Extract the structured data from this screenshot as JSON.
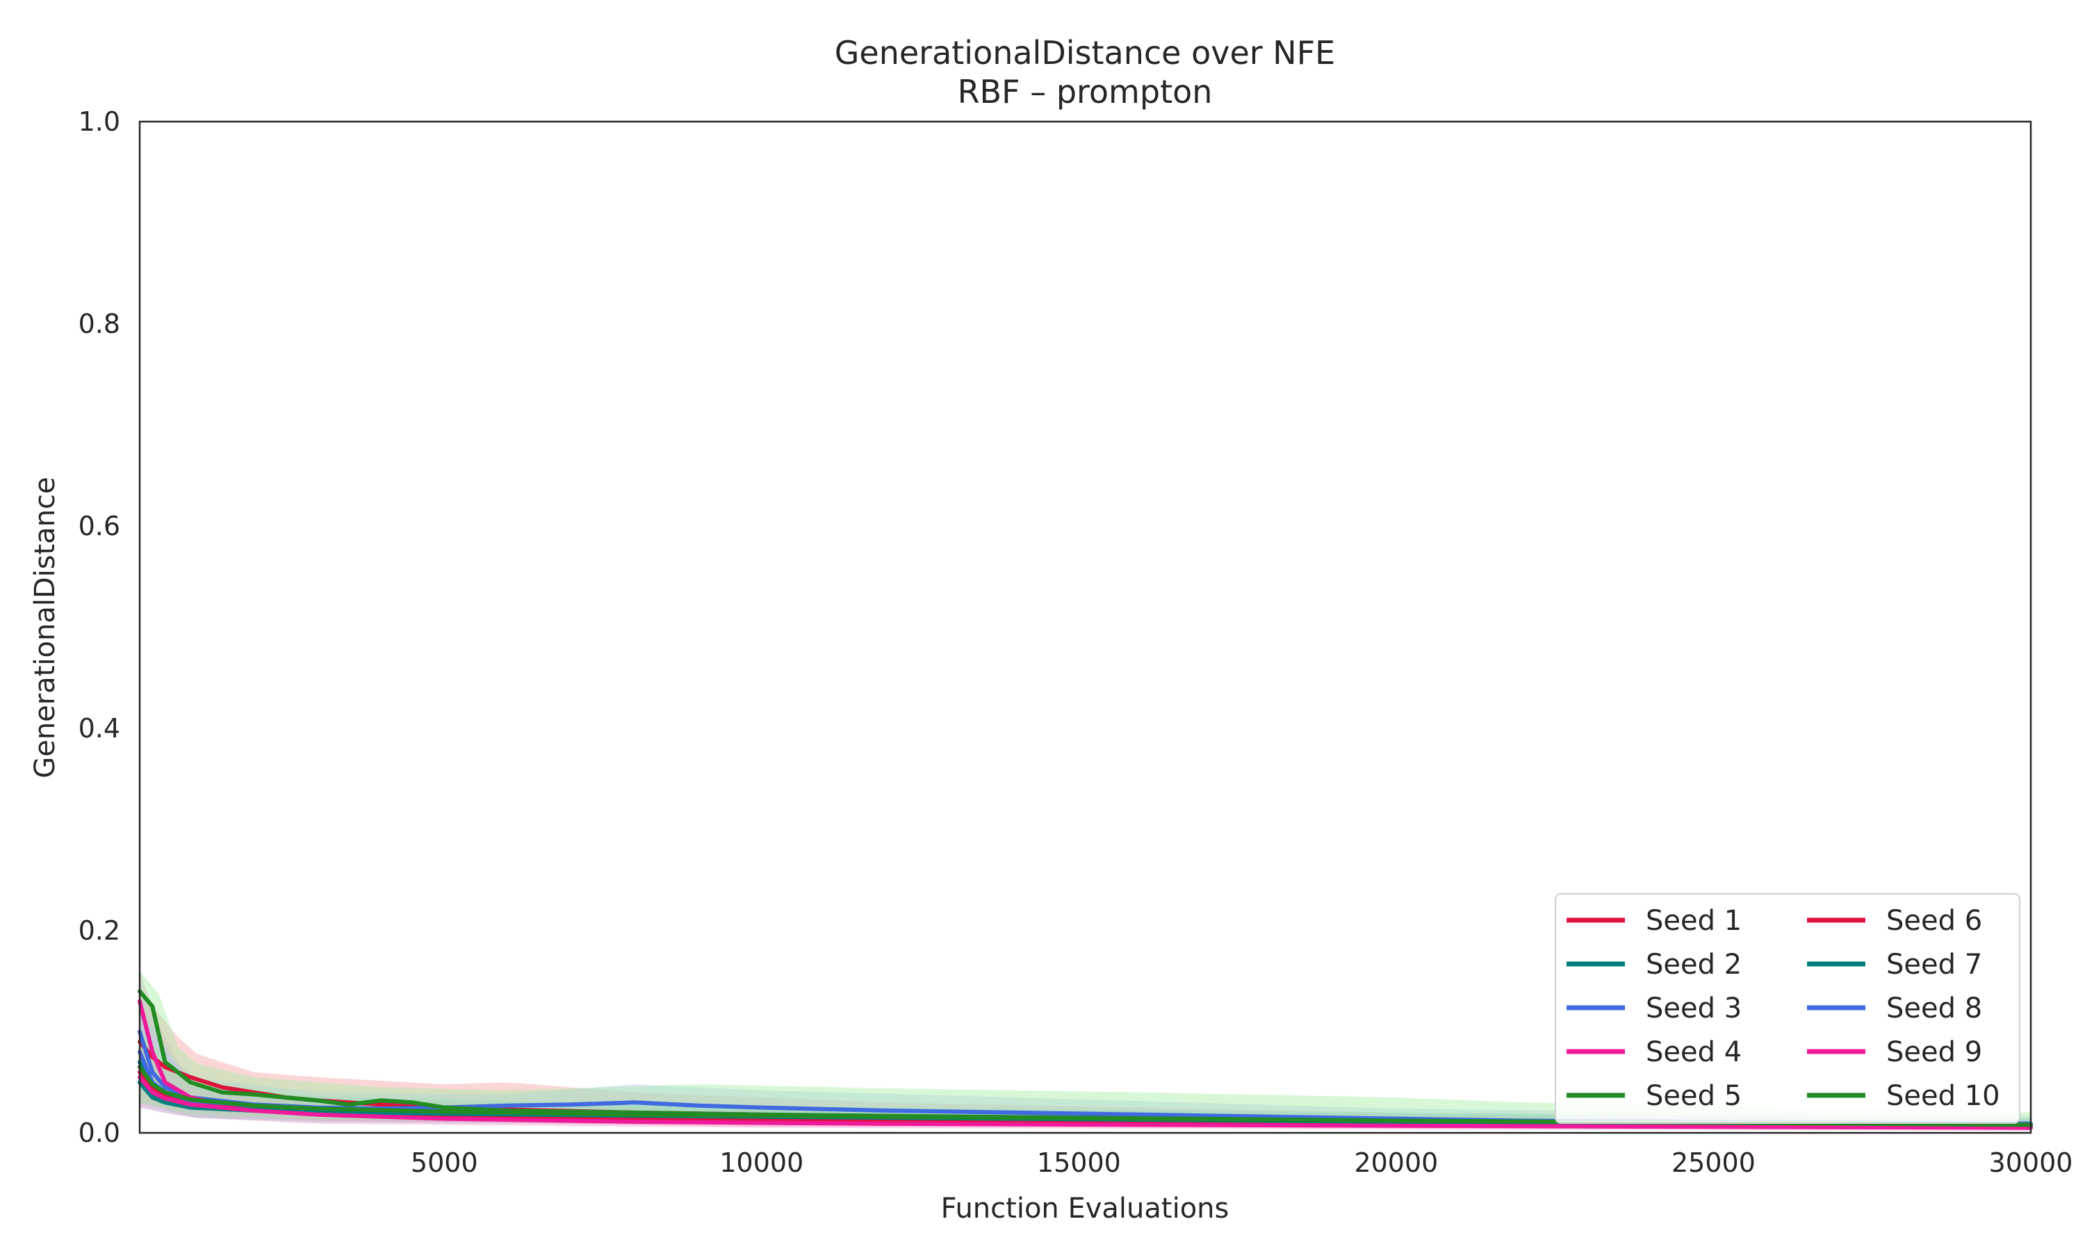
{
  "chart_data": {
    "type": "line",
    "title": "GenerationalDistance over NFE",
    "subtitle": "RBF – prompton",
    "xlabel": "Function Evaluations",
    "ylabel": "GenerationalDistance",
    "xlim": [
      200,
      30000
    ],
    "ylim": [
      0,
      1.0
    ],
    "x_ticks": [
      5000,
      10000,
      15000,
      20000,
      25000,
      30000
    ],
    "y_ticks": [
      0.0,
      0.2,
      0.4,
      0.6,
      0.8,
      1.0
    ],
    "grid": false,
    "legend": {
      "placement": "lower-right",
      "columns": 2
    },
    "band": "shaded min–max range around each seed",
    "series": [
      {
        "name": "Seed 1",
        "color": "#dc143c",
        "band_color": "#f4a3a3",
        "points": [
          [
            200,
            0.09
          ],
          [
            400,
            0.075
          ],
          [
            600,
            0.065
          ],
          [
            800,
            0.06
          ],
          [
            1000,
            0.055
          ],
          [
            1500,
            0.045
          ],
          [
            2000,
            0.04
          ],
          [
            2500,
            0.035
          ],
          [
            3000,
            0.032
          ],
          [
            4000,
            0.028
          ],
          [
            5000,
            0.025
          ],
          [
            6000,
            0.023
          ],
          [
            8000,
            0.02
          ],
          [
            10000,
            0.018
          ],
          [
            12000,
            0.016
          ],
          [
            15000,
            0.014
          ],
          [
            20000,
            0.012
          ],
          [
            25000,
            0.01
          ],
          [
            30000,
            0.008
          ]
        ],
        "lower": [
          [
            200,
            0.04
          ],
          [
            1000,
            0.025
          ],
          [
            3000,
            0.015
          ],
          [
            8000,
            0.01
          ],
          [
            15000,
            0.008
          ],
          [
            30000,
            0.004
          ]
        ],
        "upper": [
          [
            200,
            0.14
          ],
          [
            600,
            0.11
          ],
          [
            1000,
            0.08
          ],
          [
            2000,
            0.06
          ],
          [
            3000,
            0.055
          ],
          [
            5000,
            0.048
          ],
          [
            6000,
            0.05
          ],
          [
            8000,
            0.04
          ],
          [
            12000,
            0.03
          ],
          [
            20000,
            0.02
          ],
          [
            30000,
            0.014
          ]
        ]
      },
      {
        "name": "Seed 2",
        "color": "#00807f",
        "band_color": "#8fd1d0",
        "points": [
          [
            200,
            0.07
          ],
          [
            400,
            0.04
          ],
          [
            600,
            0.03
          ],
          [
            1000,
            0.025
          ],
          [
            2000,
            0.022
          ],
          [
            3000,
            0.02
          ],
          [
            5000,
            0.018
          ],
          [
            8000,
            0.016
          ],
          [
            12000,
            0.014
          ],
          [
            16000,
            0.012
          ],
          [
            20000,
            0.011
          ],
          [
            25000,
            0.01
          ],
          [
            30000,
            0.008
          ]
        ],
        "lower": [
          [
            200,
            0.03
          ],
          [
            1000,
            0.015
          ],
          [
            3000,
            0.01
          ],
          [
            10000,
            0.008
          ],
          [
            30000,
            0.004
          ]
        ],
        "upper": [
          [
            200,
            0.11
          ],
          [
            600,
            0.06
          ],
          [
            1500,
            0.04
          ],
          [
            5000,
            0.03
          ],
          [
            12000,
            0.024
          ],
          [
            30000,
            0.014
          ]
        ]
      },
      {
        "name": "Seed 3",
        "color": "#4169e1",
        "band_color": "#b8c6f2",
        "points": [
          [
            200,
            0.1
          ],
          [
            400,
            0.06
          ],
          [
            600,
            0.045
          ],
          [
            1000,
            0.035
          ],
          [
            2000,
            0.028
          ],
          [
            3000,
            0.025
          ],
          [
            4000,
            0.024
          ],
          [
            5000,
            0.025
          ],
          [
            6000,
            0.027
          ],
          [
            7000,
            0.028
          ],
          [
            8000,
            0.03
          ],
          [
            9000,
            0.027
          ],
          [
            10000,
            0.025
          ],
          [
            12000,
            0.022
          ],
          [
            14000,
            0.02
          ],
          [
            16000,
            0.018
          ],
          [
            18000,
            0.016
          ],
          [
            20000,
            0.014
          ],
          [
            22000,
            0.012
          ],
          [
            25000,
            0.011
          ],
          [
            28000,
            0.01
          ],
          [
            30000,
            0.009
          ]
        ],
        "lower": [
          [
            200,
            0.05
          ],
          [
            1000,
            0.02
          ],
          [
            3000,
            0.015
          ],
          [
            6000,
            0.016
          ],
          [
            10000,
            0.014
          ],
          [
            20000,
            0.008
          ],
          [
            30000,
            0.005
          ]
        ],
        "upper": [
          [
            200,
            0.15
          ],
          [
            600,
            0.08
          ],
          [
            1000,
            0.055
          ],
          [
            3000,
            0.04
          ],
          [
            6000,
            0.038
          ],
          [
            8000,
            0.048
          ],
          [
            10000,
            0.042
          ],
          [
            14000,
            0.035
          ],
          [
            20000,
            0.024
          ],
          [
            30000,
            0.016
          ]
        ]
      },
      {
        "name": "Seed 4",
        "color": "#f0199a",
        "band_color": "#f7a8d4",
        "points": [
          [
            200,
            0.13
          ],
          [
            400,
            0.08
          ],
          [
            600,
            0.05
          ],
          [
            1000,
            0.035
          ],
          [
            1500,
            0.028
          ],
          [
            2000,
            0.024
          ],
          [
            3000,
            0.02
          ],
          [
            4000,
            0.017
          ],
          [
            5000,
            0.015
          ],
          [
            7000,
            0.012
          ],
          [
            10000,
            0.01
          ],
          [
            15000,
            0.009
          ],
          [
            20000,
            0.008
          ],
          [
            25000,
            0.007
          ],
          [
            30000,
            0.006
          ]
        ],
        "lower": [
          [
            200,
            0.06
          ],
          [
            1000,
            0.02
          ],
          [
            3000,
            0.012
          ],
          [
            10000,
            0.006
          ],
          [
            30000,
            0.003
          ]
        ],
        "upper": [
          [
            200,
            0.16
          ],
          [
            600,
            0.09
          ],
          [
            1000,
            0.05
          ],
          [
            3000,
            0.03
          ],
          [
            10000,
            0.016
          ],
          [
            30000,
            0.01
          ]
        ]
      },
      {
        "name": "Seed 5",
        "color": "#228b22",
        "band_color": "#a6eda6",
        "points": [
          [
            200,
            0.14
          ],
          [
            400,
            0.125
          ],
          [
            600,
            0.07
          ],
          [
            800,
            0.06
          ],
          [
            1000,
            0.05
          ],
          [
            1500,
            0.04
          ],
          [
            2000,
            0.038
          ],
          [
            2500,
            0.035
          ],
          [
            3000,
            0.032
          ],
          [
            3500,
            0.028
          ],
          [
            4000,
            0.032
          ],
          [
            4500,
            0.03
          ],
          [
            5000,
            0.025
          ],
          [
            6000,
            0.022
          ],
          [
            8000,
            0.02
          ],
          [
            10000,
            0.018
          ],
          [
            15000,
            0.015
          ],
          [
            20000,
            0.012
          ],
          [
            25000,
            0.01
          ],
          [
            30000,
            0.008
          ]
        ],
        "lower": [
          [
            200,
            0.08
          ],
          [
            600,
            0.03
          ],
          [
            1500,
            0.02
          ],
          [
            4000,
            0.015
          ],
          [
            10000,
            0.01
          ],
          [
            30000,
            0.004
          ]
        ],
        "upper": [
          [
            200,
            0.16
          ],
          [
            400,
            0.175
          ],
          [
            600,
            0.1
          ],
          [
            1000,
            0.07
          ],
          [
            2000,
            0.055
          ],
          [
            4000,
            0.045
          ],
          [
            6000,
            0.042
          ],
          [
            9000,
            0.048
          ],
          [
            12000,
            0.044
          ],
          [
            16000,
            0.04
          ],
          [
            20000,
            0.035
          ],
          [
            22000,
            0.03
          ],
          [
            25000,
            0.026
          ],
          [
            30000,
            0.02
          ]
        ]
      },
      {
        "name": "Seed 6",
        "color": "#dc143c",
        "band_color": "#f4a3a3",
        "points": [
          [
            200,
            0.06
          ],
          [
            400,
            0.045
          ],
          [
            600,
            0.038
          ],
          [
            1000,
            0.03
          ],
          [
            2000,
            0.025
          ],
          [
            3000,
            0.022
          ],
          [
            5000,
            0.018
          ],
          [
            8000,
            0.015
          ],
          [
            12000,
            0.012
          ],
          [
            16000,
            0.01
          ],
          [
            20000,
            0.009
          ],
          [
            25000,
            0.008
          ],
          [
            30000,
            0.007
          ]
        ],
        "lower": [
          [
            200,
            0.03
          ],
          [
            1000,
            0.018
          ],
          [
            3000,
            0.012
          ],
          [
            10000,
            0.008
          ],
          [
            30000,
            0.004
          ]
        ],
        "upper": [
          [
            200,
            0.09
          ],
          [
            1000,
            0.045
          ],
          [
            3000,
            0.034
          ],
          [
            10000,
            0.022
          ],
          [
            30000,
            0.012
          ]
        ]
      },
      {
        "name": "Seed 7",
        "color": "#00807f",
        "band_color": "#8fd1d0",
        "points": [
          [
            200,
            0.05
          ],
          [
            400,
            0.035
          ],
          [
            600,
            0.03
          ],
          [
            1000,
            0.026
          ],
          [
            2000,
            0.023
          ],
          [
            3000,
            0.021
          ],
          [
            5000,
            0.019
          ],
          [
            8000,
            0.017
          ],
          [
            12000,
            0.015
          ],
          [
            16000,
            0.013
          ],
          [
            20000,
            0.011
          ],
          [
            25000,
            0.01
          ],
          [
            30000,
            0.008
          ]
        ],
        "lower": [
          [
            200,
            0.025
          ],
          [
            1000,
            0.015
          ],
          [
            3000,
            0.012
          ],
          [
            10000,
            0.009
          ],
          [
            30000,
            0.004
          ]
        ],
        "upper": [
          [
            200,
            0.08
          ],
          [
            1000,
            0.04
          ],
          [
            3000,
            0.03
          ],
          [
            10000,
            0.024
          ],
          [
            30000,
            0.013
          ]
        ]
      },
      {
        "name": "Seed 8",
        "color": "#4169e1",
        "band_color": "#b8c6f2",
        "points": [
          [
            200,
            0.08
          ],
          [
            400,
            0.05
          ],
          [
            600,
            0.04
          ],
          [
            1000,
            0.032
          ],
          [
            2000,
            0.027
          ],
          [
            3000,
            0.024
          ],
          [
            5000,
            0.021
          ],
          [
            8000,
            0.018
          ],
          [
            12000,
            0.016
          ],
          [
            16000,
            0.014
          ],
          [
            20000,
            0.012
          ],
          [
            25000,
            0.01
          ],
          [
            30000,
            0.009
          ]
        ],
        "lower": [
          [
            200,
            0.04
          ],
          [
            1000,
            0.018
          ],
          [
            3000,
            0.014
          ],
          [
            10000,
            0.01
          ],
          [
            30000,
            0.005
          ]
        ],
        "upper": [
          [
            200,
            0.12
          ],
          [
            1000,
            0.048
          ],
          [
            3000,
            0.036
          ],
          [
            10000,
            0.026
          ],
          [
            30000,
            0.014
          ]
        ]
      },
      {
        "name": "Seed 9",
        "color": "#f0199a",
        "band_color": "#f7a8d4",
        "points": [
          [
            200,
            0.055
          ],
          [
            400,
            0.04
          ],
          [
            600,
            0.034
          ],
          [
            1000,
            0.028
          ],
          [
            2000,
            0.022
          ],
          [
            3000,
            0.018
          ],
          [
            5000,
            0.014
          ],
          [
            8000,
            0.011
          ],
          [
            12000,
            0.009
          ],
          [
            16000,
            0.008
          ],
          [
            20000,
            0.007
          ],
          [
            25000,
            0.006
          ],
          [
            30000,
            0.005
          ]
        ],
        "lower": [
          [
            200,
            0.025
          ],
          [
            1000,
            0.015
          ],
          [
            3000,
            0.009
          ],
          [
            10000,
            0.005
          ],
          [
            30000,
            0.002
          ]
        ],
        "upper": [
          [
            200,
            0.085
          ],
          [
            1000,
            0.042
          ],
          [
            3000,
            0.028
          ],
          [
            10000,
            0.016
          ],
          [
            30000,
            0.009
          ]
        ]
      },
      {
        "name": "Seed 10",
        "color": "#228b22",
        "band_color": "#a6eda6",
        "points": [
          [
            200,
            0.065
          ],
          [
            400,
            0.048
          ],
          [
            600,
            0.04
          ],
          [
            1000,
            0.033
          ],
          [
            2000,
            0.027
          ],
          [
            3000,
            0.024
          ],
          [
            5000,
            0.021
          ],
          [
            8000,
            0.018
          ],
          [
            12000,
            0.016
          ],
          [
            16000,
            0.014
          ],
          [
            20000,
            0.012
          ],
          [
            25000,
            0.01
          ],
          [
            30000,
            0.008
          ]
        ],
        "lower": [
          [
            200,
            0.03
          ],
          [
            1000,
            0.018
          ],
          [
            3000,
            0.013
          ],
          [
            10000,
            0.01
          ],
          [
            30000,
            0.004
          ]
        ],
        "upper": [
          [
            200,
            0.1
          ],
          [
            1000,
            0.05
          ],
          [
            3000,
            0.036
          ],
          [
            10000,
            0.026
          ],
          [
            30000,
            0.014
          ]
        ]
      }
    ]
  }
}
